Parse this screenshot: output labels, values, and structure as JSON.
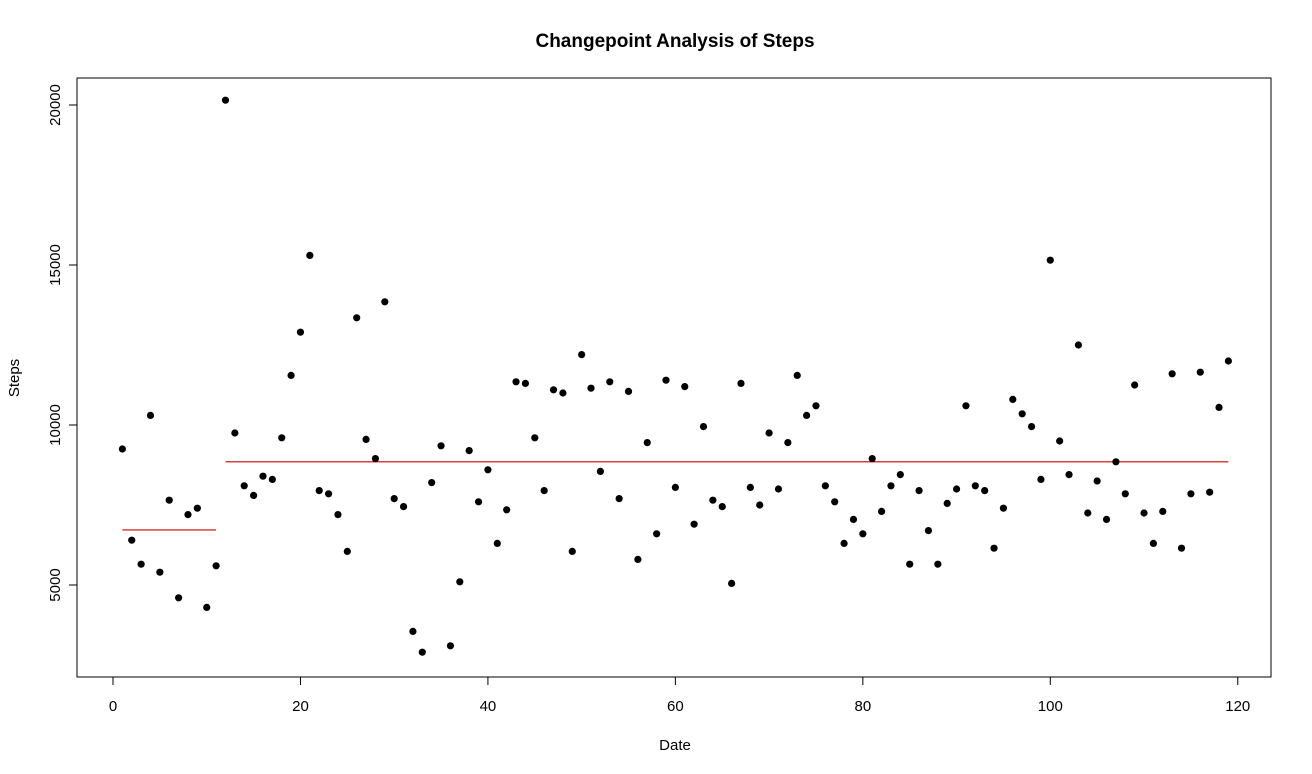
{
  "chart_data": {
    "type": "scatter",
    "title": "Changepoint Analysis of Steps",
    "xlabel": "Date",
    "ylabel": "Steps",
    "xlim": [
      1,
      119
    ],
    "ylim": [
      2900,
      20150
    ],
    "x_ticks": [
      0,
      20,
      40,
      60,
      80,
      100,
      120
    ],
    "y_ticks": [
      5000,
      10000,
      15000,
      20000
    ],
    "grid": false,
    "legend": "none",
    "point_color": "#000000",
    "line_color": "#cc0000",
    "points": [
      [
        1,
        9250
      ],
      [
        2,
        6400
      ],
      [
        3,
        5650
      ],
      [
        4,
        10300
      ],
      [
        5,
        5400
      ],
      [
        6,
        7650
      ],
      [
        7,
        4600
      ],
      [
        8,
        7200
      ],
      [
        9,
        7400
      ],
      [
        10,
        4300
      ],
      [
        11,
        5600
      ],
      [
        12,
        20150
      ],
      [
        13,
        9750
      ],
      [
        14,
        8100
      ],
      [
        15,
        7800
      ],
      [
        16,
        8400
      ],
      [
        17,
        8300
      ],
      [
        18,
        9600
      ],
      [
        19,
        11550
      ],
      [
        20,
        12900
      ],
      [
        21,
        15300
      ],
      [
        22,
        7950
      ],
      [
        23,
        7850
      ],
      [
        24,
        7200
      ],
      [
        25,
        6050
      ],
      [
        26,
        13350
      ],
      [
        27,
        9550
      ],
      [
        28,
        8950
      ],
      [
        29,
        13850
      ],
      [
        30,
        7700
      ],
      [
        31,
        7450
      ],
      [
        32,
        3550
      ],
      [
        33,
        2900
      ],
      [
        34,
        8200
      ],
      [
        35,
        9350
      ],
      [
        36,
        3100
      ],
      [
        37,
        5100
      ],
      [
        38,
        9200
      ],
      [
        39,
        7600
      ],
      [
        40,
        8600
      ],
      [
        41,
        6300
      ],
      [
        42,
        7350
      ],
      [
        43,
        11350
      ],
      [
        44,
        11300
      ],
      [
        45,
        9600
      ],
      [
        46,
        7950
      ],
      [
        47,
        11100
      ],
      [
        48,
        11000
      ],
      [
        49,
        6050
      ],
      [
        50,
        12200
      ],
      [
        51,
        11150
      ],
      [
        52,
        8550
      ],
      [
        53,
        11350
      ],
      [
        54,
        7700
      ],
      [
        55,
        11050
      ],
      [
        56,
        5800
      ],
      [
        57,
        9450
      ],
      [
        58,
        6600
      ],
      [
        59,
        11400
      ],
      [
        60,
        8050
      ],
      [
        61,
        11200
      ],
      [
        62,
        6900
      ],
      [
        63,
        9950
      ],
      [
        64,
        7650
      ],
      [
        65,
        7450
      ],
      [
        66,
        5050
      ],
      [
        67,
        11300
      ],
      [
        68,
        8050
      ],
      [
        69,
        7500
      ],
      [
        70,
        9750
      ],
      [
        71,
        8000
      ],
      [
        72,
        9450
      ],
      [
        73,
        11550
      ],
      [
        74,
        10300
      ],
      [
        75,
        10600
      ],
      [
        76,
        8100
      ],
      [
        77,
        7600
      ],
      [
        78,
        6300
      ],
      [
        79,
        7050
      ],
      [
        80,
        6600
      ],
      [
        81,
        8950
      ],
      [
        82,
        7300
      ],
      [
        83,
        8100
      ],
      [
        84,
        8450
      ],
      [
        85,
        5650
      ],
      [
        86,
        7950
      ],
      [
        87,
        6700
      ],
      [
        88,
        5650
      ],
      [
        89,
        7550
      ],
      [
        90,
        8000
      ],
      [
        91,
        10600
      ],
      [
        92,
        8100
      ],
      [
        93,
        7950
      ],
      [
        94,
        6150
      ],
      [
        95,
        7400
      ],
      [
        96,
        10800
      ],
      [
        97,
        10350
      ],
      [
        98,
        9950
      ],
      [
        99,
        8300
      ],
      [
        100,
        15150
      ],
      [
        101,
        9500
      ],
      [
        102,
        8450
      ],
      [
        103,
        12500
      ],
      [
        104,
        7250
      ],
      [
        105,
        8250
      ],
      [
        106,
        7050
      ],
      [
        107,
        8850
      ],
      [
        108,
        7850
      ],
      [
        109,
        11250
      ],
      [
        110,
        7250
      ],
      [
        111,
        6300
      ],
      [
        112,
        7300
      ],
      [
        113,
        11600
      ],
      [
        114,
        6150
      ],
      [
        115,
        7850
      ],
      [
        116,
        11650
      ],
      [
        117,
        7900
      ],
      [
        118,
        10550
      ],
      [
        119,
        12000
      ]
    ],
    "segments": [
      {
        "x_start": 1,
        "x_end": 11,
        "mean": 6720
      },
      {
        "x_start": 12,
        "x_end": 119,
        "mean": 8850
      }
    ]
  }
}
